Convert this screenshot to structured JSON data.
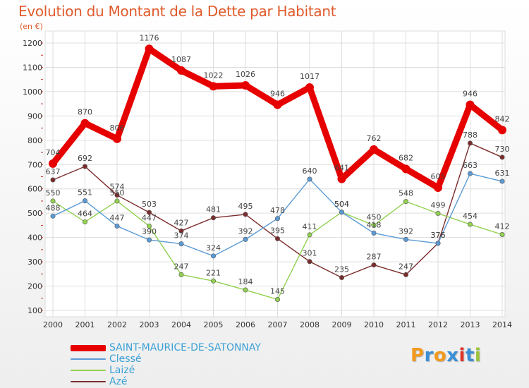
{
  "title": "Evolution du Montant de la Dette par Habitant",
  "subtitle": "(en €)",
  "logo": {
    "text": "Proxiti",
    "colors": [
      "#f29a1d",
      "#3a8fd6",
      "#f29a1d",
      "#3a8fd6",
      "#e0322a",
      "#3a8fd6",
      "#9cc43a"
    ]
  },
  "chart_data": {
    "type": "line",
    "title": "Evolution du Montant de la Dette par Habitant",
    "ylabel": "(en €)",
    "xlabel": "",
    "ylim": [
      100,
      1200
    ],
    "yticks": [
      100,
      200,
      300,
      400,
      500,
      600,
      700,
      800,
      900,
      1000,
      1100,
      1200
    ],
    "x": [
      "2000",
      "2001",
      "2002",
      "2003",
      "2004",
      "2005",
      "2006",
      "2007",
      "2008",
      "2009",
      "2010",
      "2011",
      "2012",
      "2013",
      "2014"
    ],
    "grid": true,
    "legend_position": "bottom-left",
    "series": [
      {
        "name": "SAINT-MAURICE-DE-SATONNAY",
        "color": "#e60000",
        "values": [
          704,
          870,
          806,
          1176,
          1087,
          1022,
          1026,
          946,
          1017,
          641,
          762,
          682,
          605,
          946,
          842
        ]
      },
      {
        "name": "Clessé",
        "color": "#5b9bd5",
        "values": [
          488,
          551,
          447,
          390,
          374,
          324,
          392,
          478,
          640,
          504,
          418,
          392,
          376,
          663,
          631
        ]
      },
      {
        "name": "Laizé",
        "color": "#92d050",
        "values": [
          550,
          464,
          550,
          447,
          247,
          221,
          184,
          145,
          411,
          504,
          450,
          548,
          499,
          454,
          412
        ]
      },
      {
        "name": "Azé",
        "color": "#7b2c2c",
        "values": [
          637,
          692,
          574,
          503,
          427,
          481,
          495,
          395,
          301,
          235,
          287,
          247,
          376,
          788,
          730
        ]
      }
    ]
  }
}
